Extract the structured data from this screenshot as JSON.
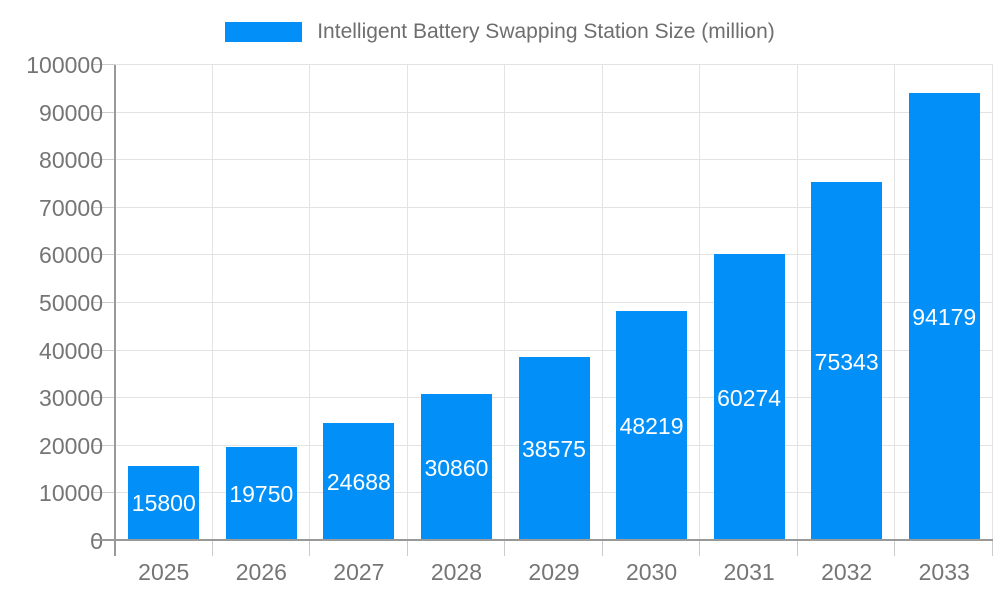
{
  "legend": {
    "label": "Intelligent Battery Swapping Station Size (million)"
  },
  "chart_data": {
    "type": "bar",
    "title": "Intelligent Battery Swapping Station Size (million)",
    "categories": [
      "2025",
      "2026",
      "2027",
      "2028",
      "2029",
      "2030",
      "2031",
      "2032",
      "2033"
    ],
    "values": [
      15800,
      19750,
      24688,
      30860,
      38575,
      48219,
      60274,
      75343,
      94179
    ],
    "series": [
      {
        "name": "Intelligent Battery Swapping Station Size (million)",
        "values": [
          15800,
          19750,
          24688,
          30860,
          38575,
          48219,
          60274,
          75343,
          94179
        ]
      }
    ],
    "xlabel": "",
    "ylabel": "",
    "ylim": [
      0,
      100000
    ],
    "y_ticks": [
      0,
      10000,
      20000,
      30000,
      40000,
      50000,
      60000,
      70000,
      80000,
      90000,
      100000
    ],
    "grid": "horizontal-and-vertical",
    "legend_position": "top-center",
    "value_labels": "inside-center-white"
  },
  "colors": {
    "bar": "#0290F8",
    "bar_label_text": "#FFFFFF",
    "axis_text": "#757575",
    "title_text": "#6E6E6E",
    "grid_line": "#E3E3E3",
    "tick_line": "#CCCCCC",
    "axis_line": "#999999",
    "background": "#FFFFFF"
  }
}
